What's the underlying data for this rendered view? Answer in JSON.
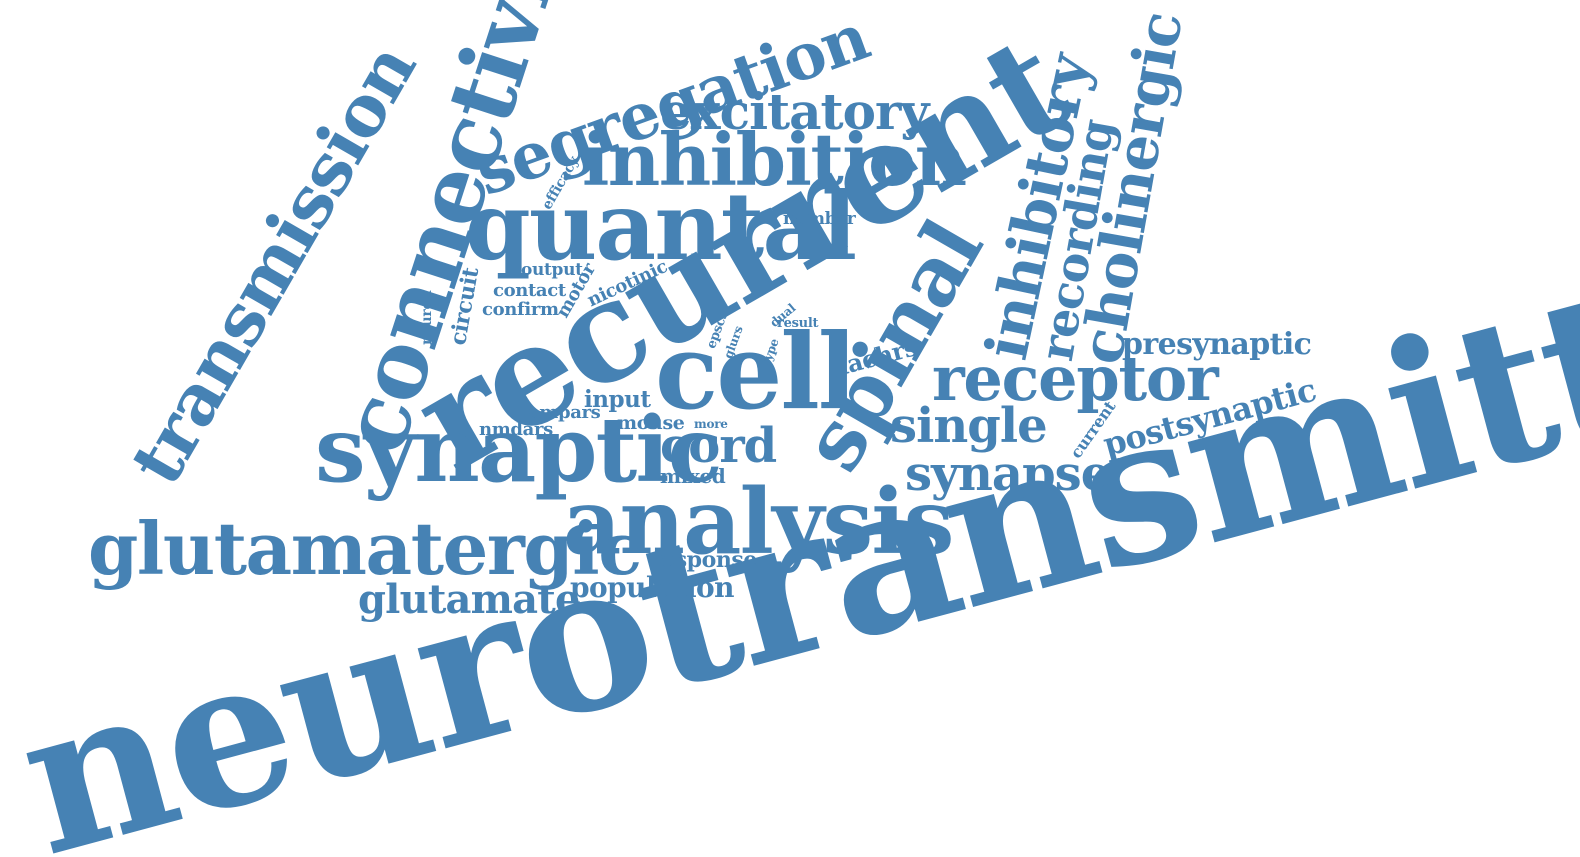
{
  "color": "#4682b4",
  "words": [
    "neurotransmitter",
    "recurrent",
    "connectivity",
    "transmission",
    "spinal",
    "cell",
    "quantal",
    "synaptic",
    "analysis",
    "inhibition",
    "glutamatergic",
    "segregation",
    "inhibitory",
    "cholinergic",
    "receptor",
    "excitatory",
    "recording",
    "synapse",
    "single",
    "cord",
    "glutamate",
    "postsynaptic",
    "presynaptic",
    "population",
    "nachrs",
    "response",
    "input",
    "mixed",
    "mouse",
    "ampars",
    "nmdars",
    "circuit",
    "motor",
    "nicotinic",
    "output",
    "contact",
    "confirm",
    "number",
    "efficacy",
    "neuron",
    "epscs",
    "glurs",
    "dual",
    "result",
    "type",
    "more",
    "current"
  ]
}
